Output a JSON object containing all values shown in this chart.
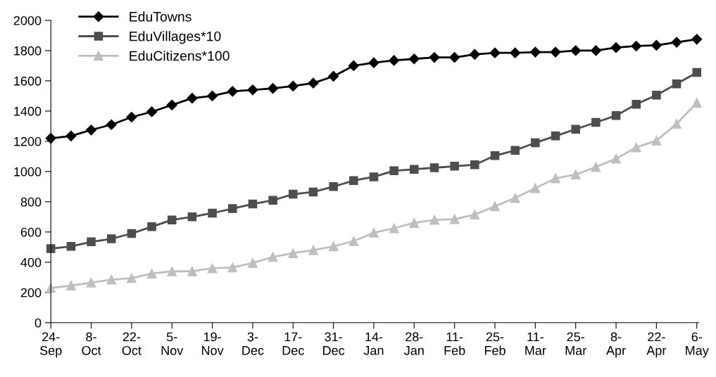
{
  "chart_data": {
    "type": "line",
    "categories": [
      "24-\nSep",
      null,
      "8-\nOct",
      null,
      "22-\nOct",
      null,
      "5-\nNov",
      null,
      "19-\nNov",
      null,
      "3-\nDec",
      null,
      "17-\nDec",
      null,
      "31-\nDec",
      null,
      "14-\nJan",
      null,
      "28-\nJan",
      null,
      "11-\nFeb",
      null,
      "25-\nFeb",
      null,
      "11-\nMar",
      null,
      "25-\nMar",
      null,
      "8-\nApr",
      null,
      "22-\nApr",
      null,
      "6-\nMay"
    ],
    "series": [
      {
        "name": "EduTowns",
        "color": "#000000",
        "marker": "diamond",
        "values": [
          1220,
          1235,
          1275,
          1310,
          1360,
          1395,
          1440,
          1485,
          1500,
          1530,
          1540,
          1550,
          1565,
          1585,
          1630,
          1700,
          1720,
          1735,
          1745,
          1755,
          1755,
          1775,
          1785,
          1785,
          1790,
          1790,
          1800,
          1800,
          1820,
          1830,
          1835,
          1855,
          1875
        ]
      },
      {
        "name": "EduVillages*10",
        "color": "#4d4d4d",
        "marker": "square",
        "values": [
          490,
          505,
          535,
          555,
          590,
          635,
          680,
          700,
          725,
          755,
          785,
          810,
          850,
          865,
          900,
          940,
          965,
          1005,
          1015,
          1025,
          1035,
          1045,
          1105,
          1140,
          1190,
          1235,
          1280,
          1325,
          1370,
          1445,
          1505,
          1580,
          1655
        ]
      },
      {
        "name": "EduCitizens*100",
        "color": "#bfbfbf",
        "marker": "triangle",
        "values": [
          230,
          245,
          265,
          285,
          295,
          325,
          340,
          340,
          360,
          365,
          395,
          435,
          460,
          480,
          505,
          540,
          595,
          625,
          660,
          680,
          685,
          715,
          770,
          825,
          890,
          955,
          980,
          1030,
          1085,
          1160,
          1205,
          1315,
          1455
        ]
      }
    ],
    "ylim": [
      0,
      2000
    ],
    "yticks": [
      0,
      200,
      400,
      600,
      800,
      1000,
      1200,
      1400,
      1600,
      1800,
      2000
    ],
    "grid": false,
    "legend": "top left",
    "line_style": "solid"
  }
}
